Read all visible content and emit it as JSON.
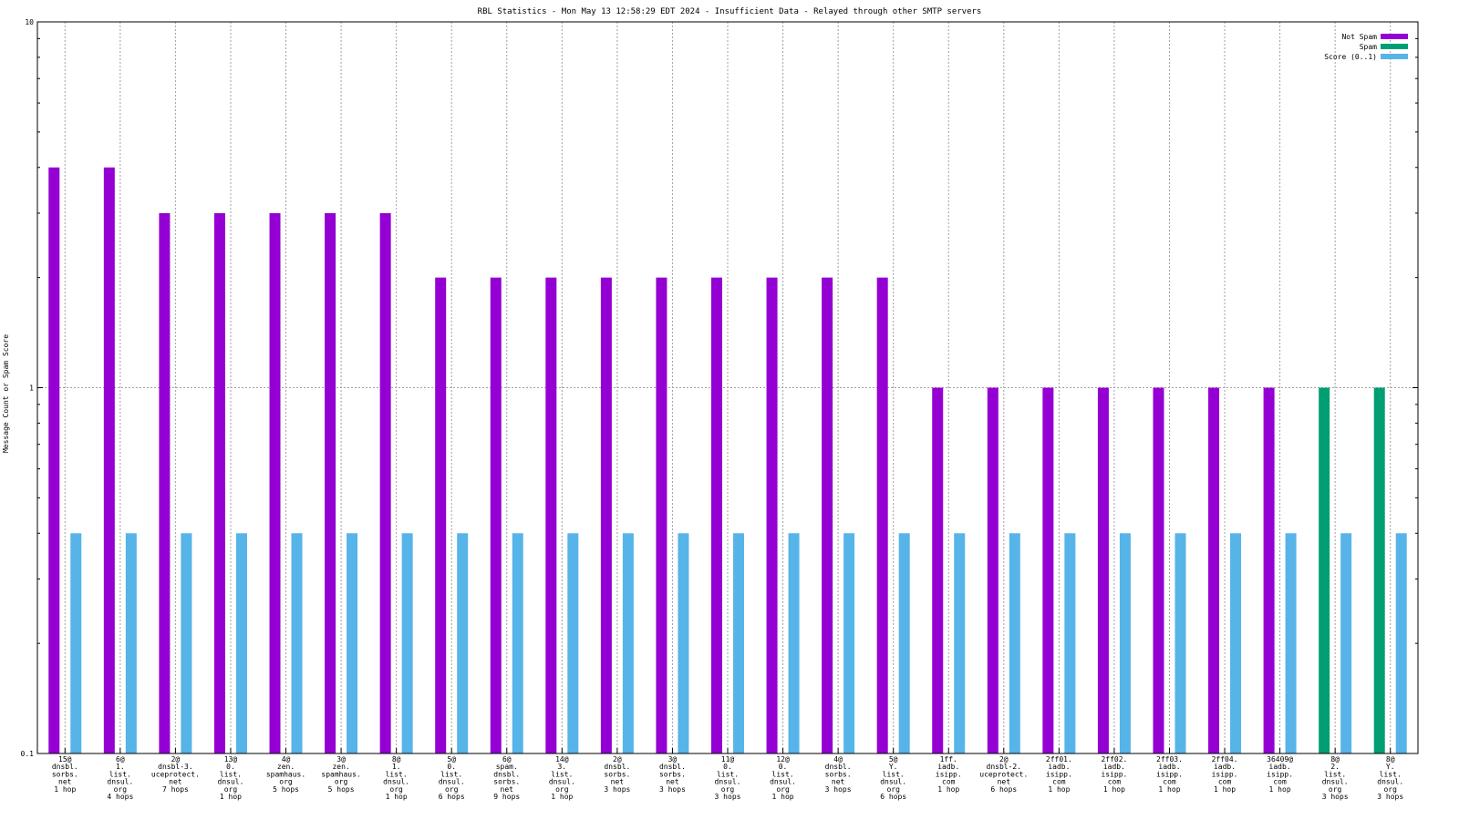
{
  "chart_data": {
    "type": "bar",
    "title": "RBL Statistics - Mon May 13 12:58:29 EDT 2024 - Insufficient Data - Relayed through other SMTP servers",
    "ylabel": "Message Count or Spam Score",
    "xlabel": "",
    "yscale": "log",
    "ylim": [
      0.1,
      10
    ],
    "yticks": [
      "0.1",
      "1",
      "10"
    ],
    "grid": true,
    "legend_position": "top-right",
    "categories": [
      [
        "15@",
        "dnsbl.",
        "sorbs.",
        "net",
        "1 hop"
      ],
      [
        "6@",
        "1.",
        "list.",
        "dnsul.",
        "org",
        "4 hops"
      ],
      [
        "2@",
        "dnsbl-3.",
        "uceprotect.",
        "net",
        "7 hops"
      ],
      [
        "13@",
        "0.",
        "list.",
        "dnsul.",
        "org",
        "1 hop"
      ],
      [
        "4@",
        "zen.",
        "spamhaus.",
        "org",
        "5 hops"
      ],
      [
        "3@",
        "zen.",
        "spamhaus.",
        "org",
        "5 hops"
      ],
      [
        "8@",
        "1.",
        "list.",
        "dnsul.",
        "org",
        "1 hop"
      ],
      [
        "5@",
        "0.",
        "list.",
        "dnsul.",
        "org",
        "6 hops"
      ],
      [
        "6@",
        "spam.",
        "dnsbl.",
        "sorbs.",
        "net",
        "9 hops"
      ],
      [
        "14@",
        "3.",
        "list.",
        "dnsul.",
        "org",
        "1 hop"
      ],
      [
        "2@",
        "dnsbl.",
        "sorbs.",
        "net",
        "3 hops"
      ],
      [
        "3@",
        "dnsbl.",
        "sorbs.",
        "net",
        "3 hops"
      ],
      [
        "11@",
        "0.",
        "list.",
        "dnsul.",
        "org",
        "3 hops"
      ],
      [
        "12@",
        "0.",
        "list.",
        "dnsul.",
        "org",
        "1 hop"
      ],
      [
        "4@",
        "dnsbl.",
        "sorbs.",
        "net",
        "3 hops"
      ],
      [
        "5@",
        "Y.",
        "list.",
        "dnsul.",
        "org",
        "6 hops"
      ],
      [
        "1ff.",
        "iadb.",
        "isipp.",
        "com",
        "1 hop"
      ],
      [
        "2@",
        "dnsbl-2.",
        "uceprotect.",
        "net",
        "6 hops"
      ],
      [
        "2ff01.",
        "iadb.",
        "isipp.",
        "com",
        "1 hop"
      ],
      [
        "2ff02.",
        "iadb.",
        "isipp.",
        "com",
        "1 hop"
      ],
      [
        "2ff03.",
        "iadb.",
        "isipp.",
        "com",
        "1 hop"
      ],
      [
        "2ff04.",
        "iadb.",
        "isipp.",
        "com",
        "1 hop"
      ],
      [
        "36409@",
        "iadb.",
        "isipp.",
        "com",
        "1 hop"
      ],
      [
        "8@",
        "2.",
        "list.",
        "dnsul.",
        "org",
        "3 hops"
      ],
      [
        "8@",
        "Y.",
        "list.",
        "dnsul.",
        "org",
        "3 hops"
      ]
    ],
    "series": [
      {
        "name": "Not Spam",
        "color": "#9400d3",
        "values": [
          4,
          4,
          3,
          3,
          3,
          3,
          3,
          2,
          2,
          2,
          2,
          2,
          2,
          2,
          2,
          2,
          1,
          1,
          1,
          1,
          1,
          1,
          1,
          null,
          null
        ]
      },
      {
        "name": "Spam",
        "color": "#009e73",
        "values": [
          null,
          null,
          null,
          null,
          null,
          null,
          null,
          null,
          null,
          null,
          null,
          null,
          null,
          null,
          null,
          null,
          null,
          null,
          null,
          null,
          null,
          null,
          null,
          1,
          1
        ]
      },
      {
        "name": "Score (0..1)",
        "color": "#56b4e9",
        "values": [
          0.4,
          0.4,
          0.4,
          0.4,
          0.4,
          0.4,
          0.4,
          0.4,
          0.4,
          0.4,
          0.4,
          0.4,
          0.4,
          0.4,
          0.4,
          0.4,
          0.4,
          0.4,
          0.4,
          0.4,
          0.4,
          0.4,
          0.4,
          0.4,
          0.4
        ]
      }
    ]
  }
}
